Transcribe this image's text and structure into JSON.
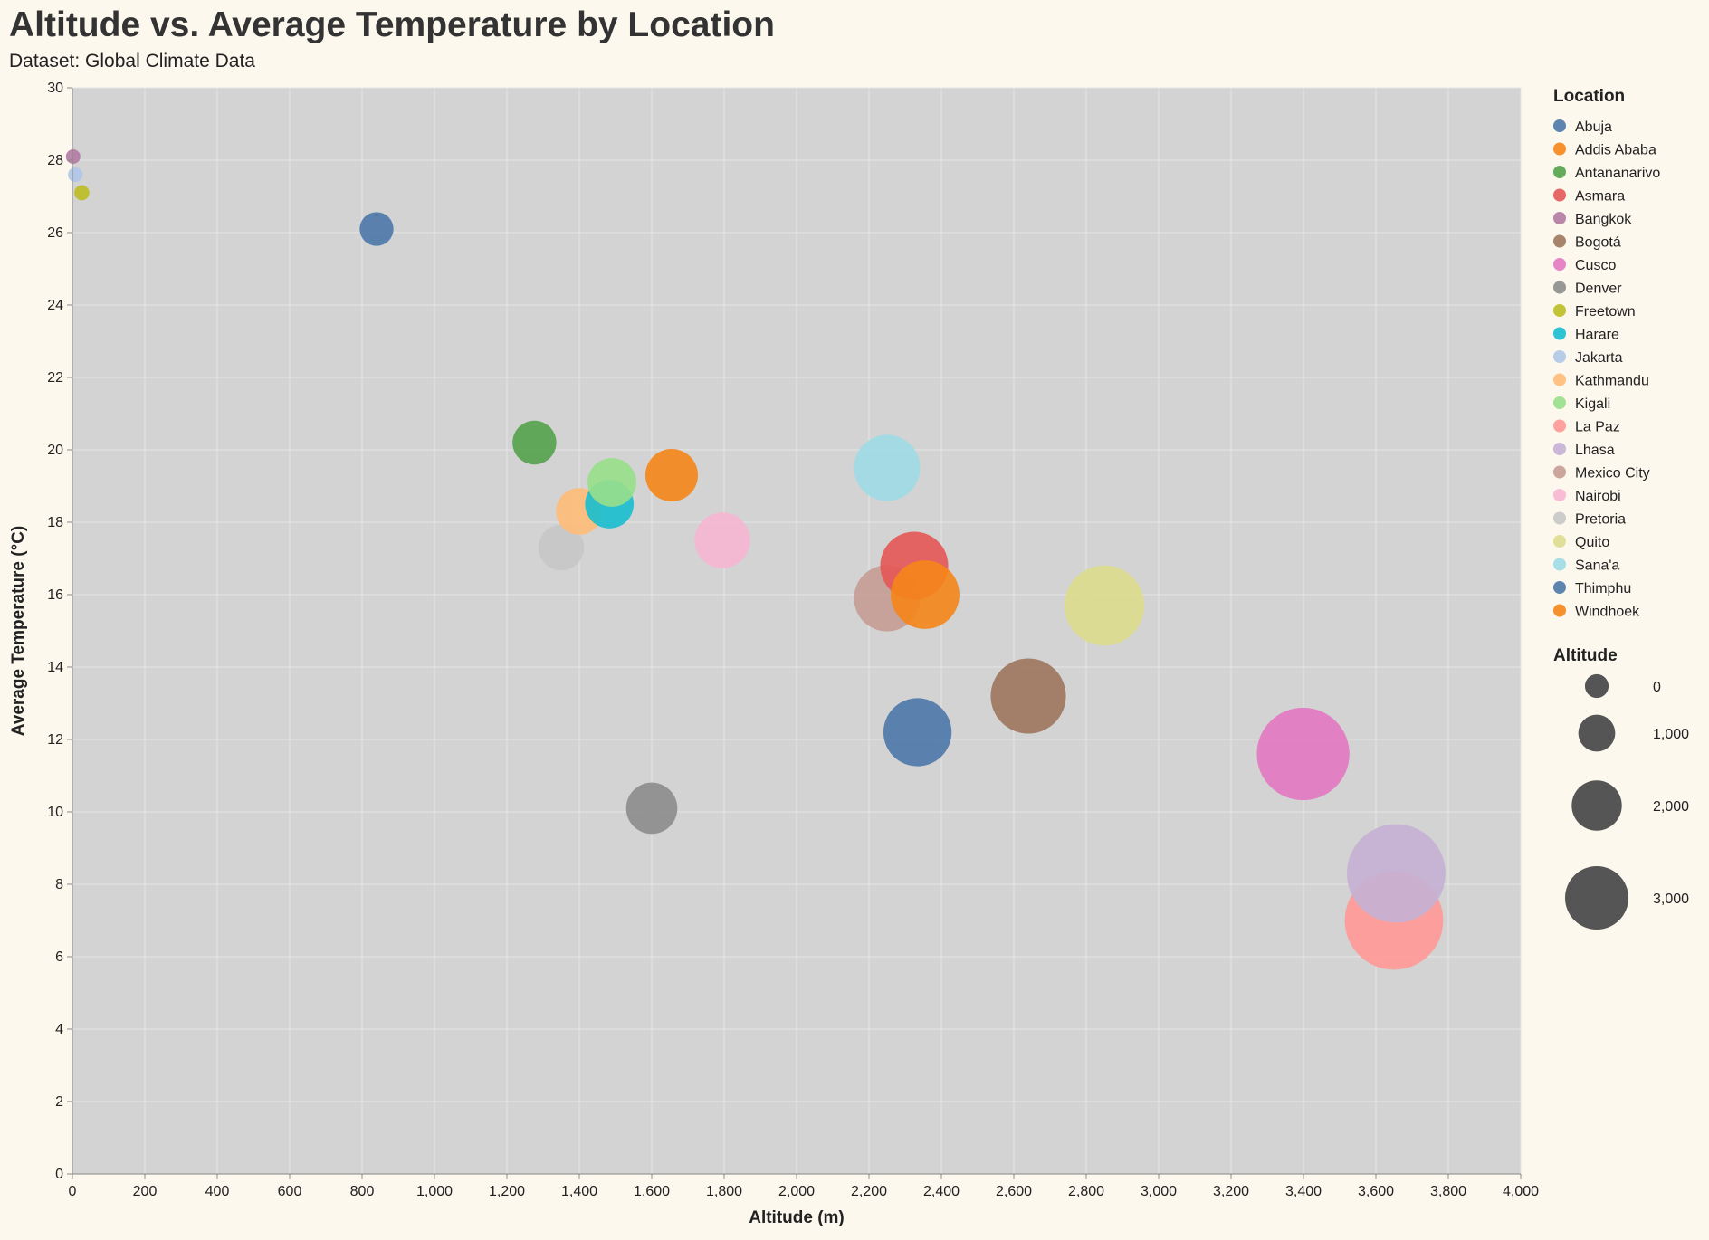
{
  "chart_data": {
    "type": "scatter",
    "title": "Altitude vs. Average Temperature by Location",
    "subtitle": "Dataset: Global Climate Data",
    "xlabel": "Altitude (m)",
    "ylabel": "Average Temperature (°C)",
    "xlim": [
      0,
      4000
    ],
    "ylim": [
      0,
      30
    ],
    "x_ticks": [
      0,
      200,
      400,
      600,
      800,
      1000,
      1200,
      1400,
      1600,
      1800,
      2000,
      2200,
      2400,
      2600,
      2800,
      3000,
      3200,
      3400,
      3600,
      3800,
      4000
    ],
    "x_tick_labels": [
      "0",
      "200",
      "400",
      "600",
      "800",
      "1,000",
      "1,200",
      "1,400",
      "1,600",
      "1,800",
      "2,000",
      "2,200",
      "2,400",
      "2,600",
      "2,800",
      "3,000",
      "3,200",
      "3,400",
      "3,600",
      "3,800",
      "4,000"
    ],
    "y_ticks": [
      0,
      2,
      4,
      6,
      8,
      10,
      12,
      14,
      16,
      18,
      20,
      22,
      24,
      26,
      28,
      30
    ],
    "y_tick_labels": [
      "0",
      "2",
      "4",
      "6",
      "8",
      "10",
      "12",
      "14",
      "16",
      "18",
      "20",
      "22",
      "24",
      "26",
      "28",
      "30"
    ],
    "grid": true,
    "size_encoding": "Altitude",
    "color_encoding": "Location",
    "legend": {
      "color_title": "Location",
      "size_title": "Altitude",
      "size_values": [
        0,
        1000,
        2000,
        3000
      ],
      "size_labels": [
        "0",
        "1,000",
        "2,000",
        "3,000"
      ],
      "size_symbol_color": "#555555",
      "placement": "right"
    },
    "series": [
      {
        "name": "Abuja",
        "color": "#4c78a8",
        "points": [
          {
            "x": 840,
            "y": 26.1
          }
        ]
      },
      {
        "name": "Addis Ababa",
        "color": "#f58518",
        "points": [
          {
            "x": 2355,
            "y": 16.0
          }
        ]
      },
      {
        "name": "Antananarivo",
        "color": "#54a24b",
        "points": [
          {
            "x": 1276,
            "y": 20.2
          }
        ]
      },
      {
        "name": "Asmara",
        "color": "#e45756",
        "points": [
          {
            "x": 2325,
            "y": 16.8
          }
        ]
      },
      {
        "name": "Bangkok",
        "color": "#b279a2",
        "points": [
          {
            "x": 2,
            "y": 28.1
          }
        ]
      },
      {
        "name": "Bogotá",
        "color": "#9d755d",
        "points": [
          {
            "x": 2640,
            "y": 13.2
          }
        ]
      },
      {
        "name": "Cusco",
        "color": "#e377c2",
        "points": [
          {
            "x": 3399,
            "y": 11.6
          }
        ]
      },
      {
        "name": "Denver",
        "color": "#8c8c8c",
        "points": [
          {
            "x": 1600,
            "y": 10.1
          }
        ]
      },
      {
        "name": "Freetown",
        "color": "#bcbd22",
        "points": [
          {
            "x": 26,
            "y": 27.1
          }
        ]
      },
      {
        "name": "Harare",
        "color": "#17becf",
        "points": [
          {
            "x": 1483,
            "y": 18.5
          }
        ]
      },
      {
        "name": "Jakarta",
        "color": "#aec7e8",
        "points": [
          {
            "x": 8,
            "y": 27.6
          }
        ]
      },
      {
        "name": "Kathmandu",
        "color": "#ffbb78",
        "points": [
          {
            "x": 1400,
            "y": 18.3
          }
        ]
      },
      {
        "name": "Kigali",
        "color": "#98df8a",
        "points": [
          {
            "x": 1490,
            "y": 19.1
          }
        ]
      },
      {
        "name": "La Paz",
        "color": "#ff9896",
        "points": [
          {
            "x": 3650,
            "y": 7.0
          }
        ]
      },
      {
        "name": "Lhasa",
        "color": "#c5b0d5",
        "points": [
          {
            "x": 3656,
            "y": 8.3
          }
        ]
      },
      {
        "name": "Mexico City",
        "color": "#c49c94",
        "points": [
          {
            "x": 2250,
            "y": 15.9
          }
        ]
      },
      {
        "name": "Nairobi",
        "color": "#f7b6d2",
        "points": [
          {
            "x": 1795,
            "y": 17.5
          }
        ]
      },
      {
        "name": "Pretoria",
        "color": "#c7c7c7",
        "points": [
          {
            "x": 1350,
            "y": 17.3
          }
        ]
      },
      {
        "name": "Quito",
        "color": "#dbdb8d",
        "points": [
          {
            "x": 2850,
            "y": 15.7
          }
        ]
      },
      {
        "name": "Sana'a",
        "color": "#9edae5",
        "points": [
          {
            "x": 2250,
            "y": 19.5
          }
        ]
      },
      {
        "name": "Thimphu",
        "color": "#4c78a8",
        "points": [
          {
            "x": 2334,
            "y": 12.2
          }
        ]
      },
      {
        "name": "Windhoek",
        "color": "#f58518",
        "points": [
          {
            "x": 1655,
            "y": 19.3
          }
        ]
      }
    ]
  },
  "colors": {
    "background": "#fdf8ee",
    "plot_background": "#d3d3d3",
    "grid": "#e6e6e6",
    "axis": "#888888"
  }
}
